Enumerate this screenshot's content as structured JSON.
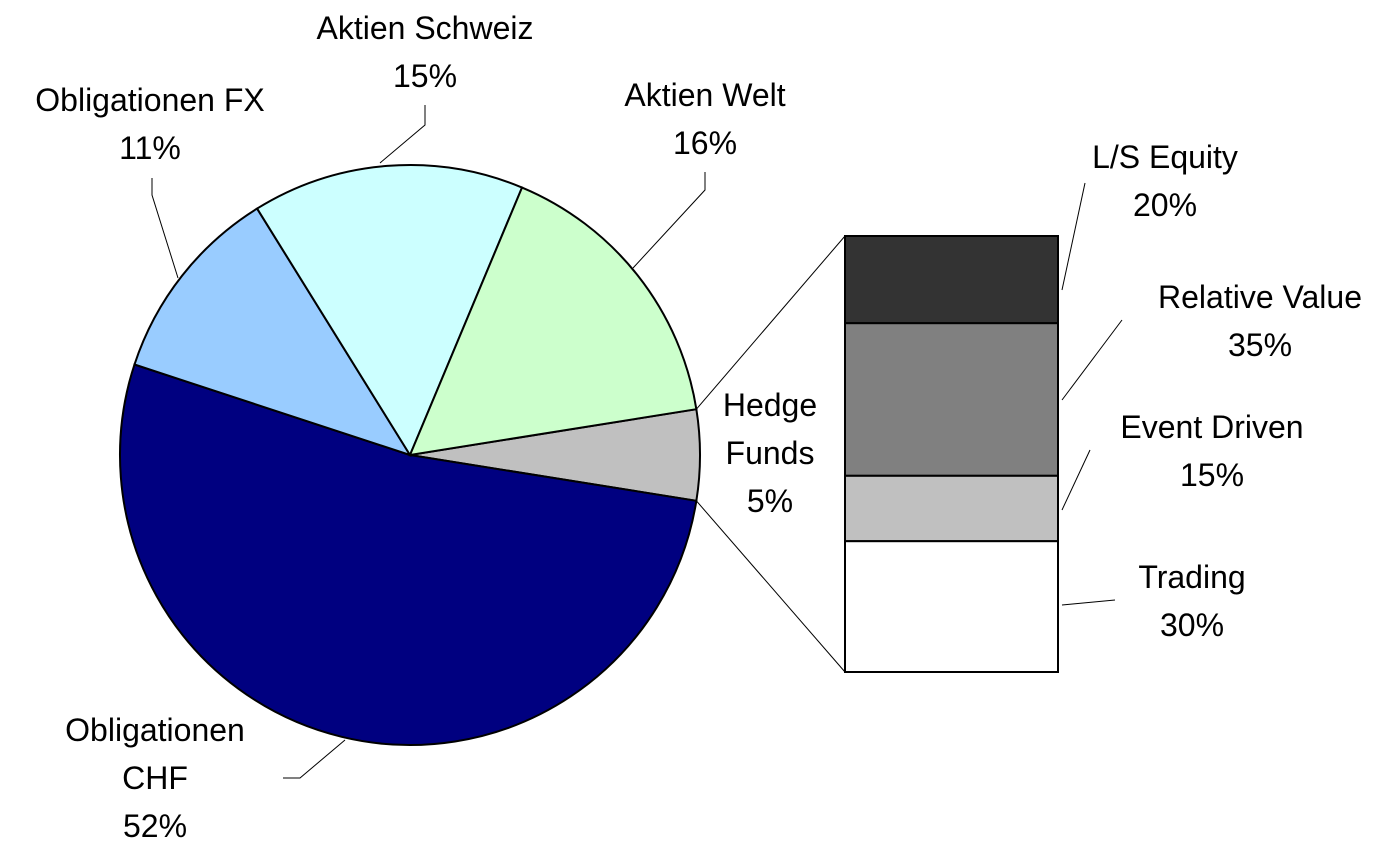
{
  "chart_data": [
    {
      "type": "pie",
      "categories": [
        "Hedge Funds",
        "Obligationen CHF",
        "Obligationen FX",
        "Aktien Schweiz",
        "Aktien Welt"
      ],
      "values": [
        5,
        52,
        11,
        15,
        16
      ],
      "value_labels": [
        "5%",
        "52%",
        "11%",
        "15%",
        "16%"
      ],
      "colors": [
        "#c0c0c0",
        "#000080",
        "#99ccff",
        "#ccffff",
        "#ccffcc"
      ]
    },
    {
      "type": "stacked-bar",
      "categories": [
        "L/S Equity",
        "Relative Value",
        "Event Driven",
        "Trading"
      ],
      "values": [
        20,
        35,
        15,
        30
      ],
      "value_labels": [
        "20%",
        "35%",
        "15%",
        "30%"
      ],
      "colors": [
        "#333333",
        "#808080",
        "#c0c0c0",
        "#ffffff"
      ]
    }
  ]
}
